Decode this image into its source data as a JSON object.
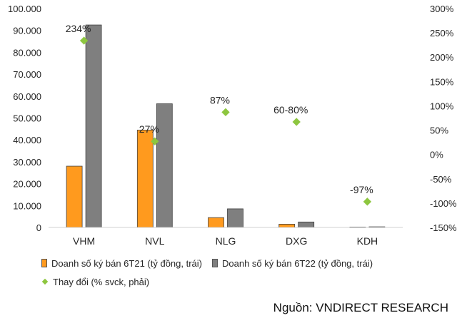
{
  "chart_data": {
    "type": "bar",
    "categories": [
      "VHM",
      "NVL",
      "NLG",
      "DXG",
      "KDH"
    ],
    "series": [
      {
        "name": "Doanh số ký bán 6T21 (tỷ đồng, trái)",
        "axis": "left",
        "color": "#FF9A1E",
        "values": [
          28000,
          44500,
          4500,
          1500,
          200
        ]
      },
      {
        "name": "Doanh số ký bán 6T22 (tỷ đồng, trái)",
        "axis": "left",
        "color": "#7F7F7F",
        "values": [
          92500,
          56500,
          8500,
          2500,
          300
        ]
      },
      {
        "name": "Thay đổi (% svck, phải)",
        "axis": "right",
        "type": "scatter",
        "color": "#8DC63F",
        "values": [
          234,
          27,
          87,
          67,
          -97
        ],
        "labels": [
          "234%",
          "27%",
          "87%",
          "60-80%",
          "-97%"
        ]
      }
    ],
    "ylim": [
      0,
      100000
    ],
    "y2lim": [
      -150,
      300
    ],
    "yticks": [
      "0",
      "10.000",
      "20.000",
      "30.000",
      "40.000",
      "50.000",
      "60.000",
      "70.000",
      "80.000",
      "90.000",
      "100.000"
    ],
    "y2ticks": [
      "-150%",
      "-100%",
      "-50%",
      "0%",
      "50%",
      "100%",
      "150%",
      "200%",
      "250%",
      "300%"
    ],
    "legend_position": "bottom",
    "grid": false
  },
  "source": "Nguồn: VNDIRECT RESEARCH"
}
